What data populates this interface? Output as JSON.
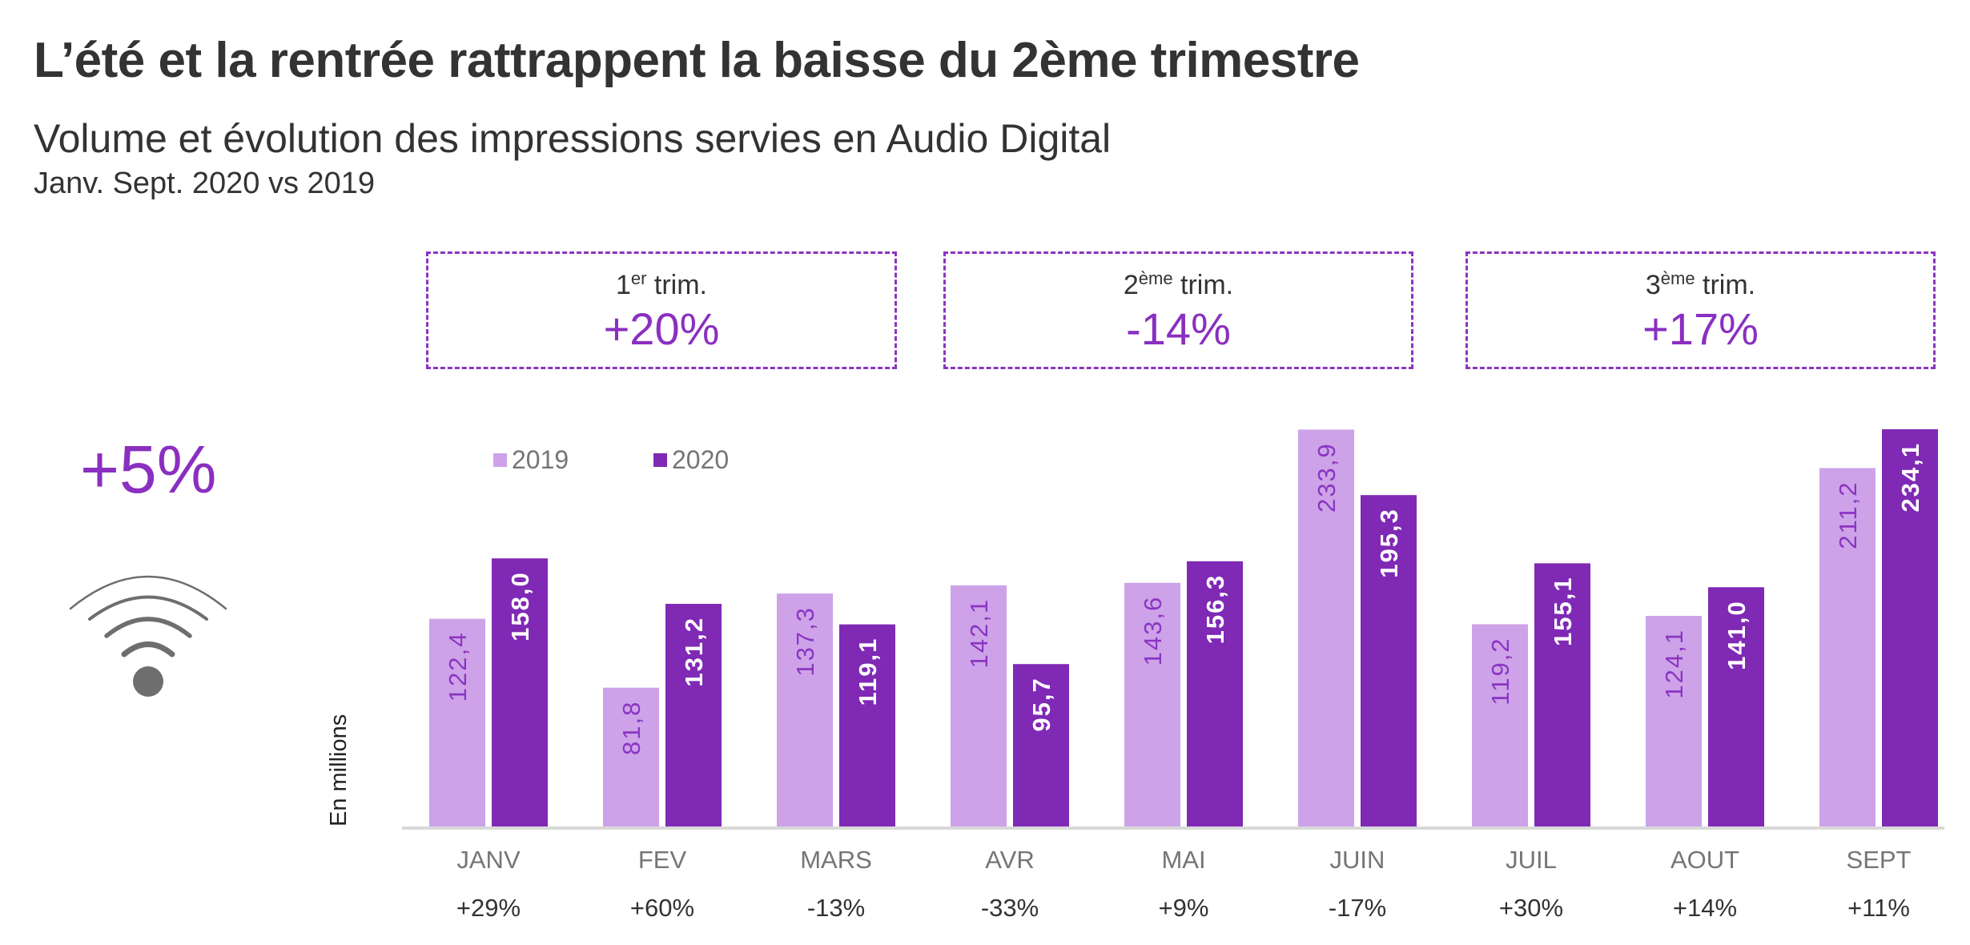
{
  "header": {
    "title": "L’été et la rentrée rattrappent la baisse du 2ème trimestre",
    "subtitle": "Volume et évolution des impressions servies en Audio Digital",
    "period": "Janv. Sept. 2020 vs 2019"
  },
  "quarters": [
    {
      "num": "1",
      "sup": "er",
      "label": " trim.",
      "value": "+20%"
    },
    {
      "num": "2",
      "sup": "ème",
      "label": " trim.",
      "value": "-14%"
    },
    {
      "num": "3",
      "sup": "ème",
      "label": " trim.",
      "value": "+17%"
    }
  ],
  "total": {
    "value": "+5%",
    "icon": "wifi-icon"
  },
  "colors": {
    "series_2019": "#cda2e8",
    "series_2020": "#7f29b5",
    "accent": "#8a2fc0",
    "label_2019": "#8a35c2",
    "label_2020": "#ffffff",
    "axis": "#d9d9d9",
    "month_label": "#757575",
    "growth_label": "#333333",
    "icon": "#6e6e6e"
  },
  "chart_data": {
    "type": "bar",
    "title": "Volume et évolution des impressions servies en Audio Digital",
    "xlabel": "",
    "ylabel": "En millions",
    "ylim": [
      0,
      234.1
    ],
    "grid": false,
    "legend_position": "top-left",
    "categories": [
      "JANV",
      "FEV",
      "MARS",
      "AVR",
      "MAI",
      "JUIN",
      "JUIL",
      "AOUT",
      "SEPT"
    ],
    "series": [
      {
        "name": "2019",
        "values": [
          122.4,
          81.8,
          137.3,
          142.1,
          143.6,
          233.9,
          119.2,
          124.1,
          211.2
        ],
        "labels": [
          "122,4",
          "81,8",
          "137,3",
          "142,1",
          "143,6",
          "233,9",
          "119,2",
          "124,1",
          "211,2"
        ]
      },
      {
        "name": "2020",
        "values": [
          158.0,
          131.2,
          119.1,
          95.7,
          156.3,
          195.3,
          155.1,
          141.0,
          234.1
        ],
        "labels": [
          "158,0",
          "131,2",
          "119,1",
          "95,7",
          "156,3",
          "195,3",
          "155,1",
          "141,0",
          "234,1"
        ]
      }
    ],
    "growth": [
      "+29%",
      "+60%",
      "-13%",
      "-33%",
      "+9%",
      "-17%",
      "+30%",
      "+14%",
      "+11%"
    ]
  }
}
